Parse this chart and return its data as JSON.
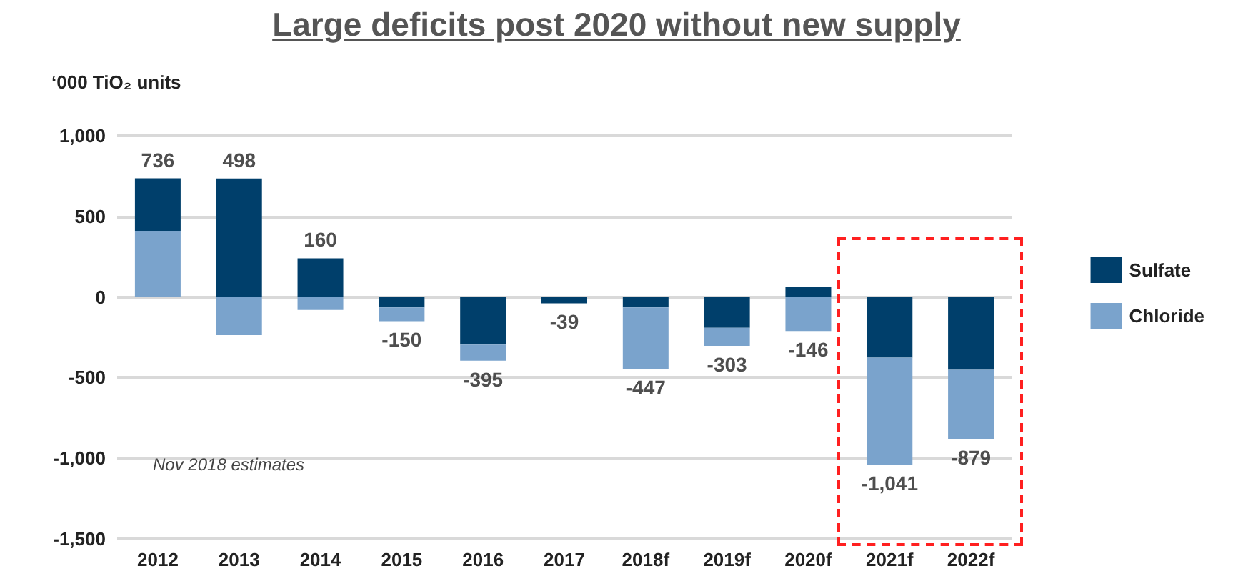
{
  "chart_data": {
    "type": "bar",
    "title": "Large deficits post 2020 without new supply",
    "ylabel": "‘000 TiO₂ units",
    "categories": [
      "2012",
      "2013",
      "2014",
      "2015",
      "2016",
      "2017",
      "2018f",
      "2019f",
      "2020f",
      "2021f",
      "2022f"
    ],
    "series": [
      {
        "name": "Sulfate",
        "color": "#003f6b",
        "values": [
          326,
          735,
          240,
          -65,
          -295,
          -39,
          -65,
          -191,
          65,
          -376,
          -452
        ]
      },
      {
        "name": "Chloride",
        "color": "#7aa3cc",
        "values": [
          410,
          -237,
          -80,
          -85,
          -100,
          0,
          -382,
          -112,
          -211,
          -665,
          -427
        ]
      }
    ],
    "stacked": true,
    "totals": [
      "736",
      "498",
      "160",
      "-150",
      "-395",
      "-39",
      "-447",
      "-303",
      "-146",
      "-1,041",
      "-879"
    ],
    "ylim": [
      -1500,
      1000
    ],
    "yticks": [
      {
        "value": -1500,
        "label": "-1,500"
      },
      {
        "value": -1000,
        "label": "-1,000"
      },
      -500,
      0,
      500,
      {
        "value": 1000,
        "label": "1,000"
      }
    ],
    "grid": "y",
    "legend": "right",
    "annotations": [
      "Nov 2018 estimates"
    ]
  }
}
